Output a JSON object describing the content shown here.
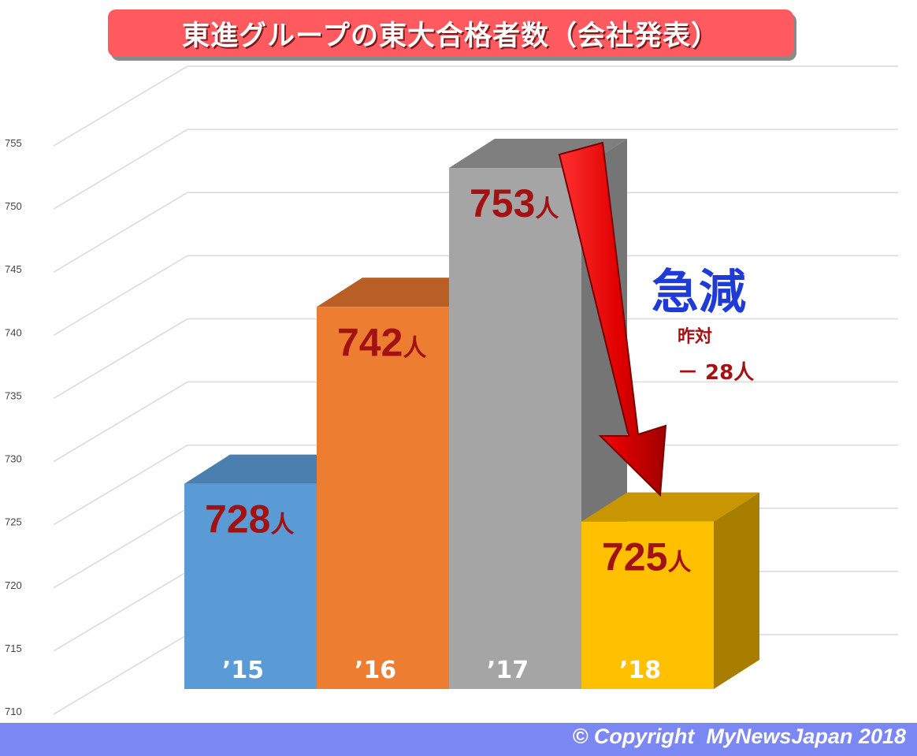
{
  "chart_data": {
    "type": "bar",
    "title": "東進グループの東大合格者数（会社発表）",
    "categories": [
      "’15",
      "’16",
      "’17",
      "’18"
    ],
    "values": [
      728,
      742,
      753,
      725
    ],
    "value_labels": [
      "728",
      "742",
      "753",
      "725"
    ],
    "unit": "人",
    "ylim": [
      710,
      755
    ],
    "yticks": [
      710,
      715,
      720,
      725,
      730,
      735,
      740,
      745,
      750,
      755
    ],
    "colors": [
      "#5b9bd5",
      "#ed7d31",
      "#a5a5a5",
      "#ffc000"
    ],
    "grid": true,
    "legend": "none",
    "annotation": {
      "headline": "急減",
      "yoy_label": "昨対",
      "change": "－ 28人"
    }
  },
  "footer": {
    "copyright": "© Copyright  MyNewsJapan 2018"
  }
}
